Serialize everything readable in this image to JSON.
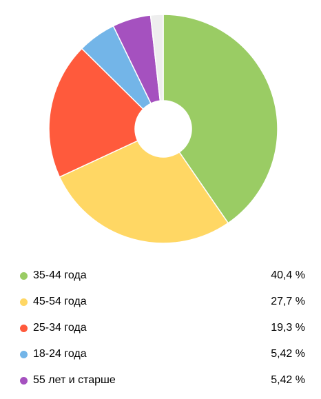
{
  "chart_data": {
    "type": "pie",
    "categories": [
      "35-44 года",
      "45-54 года",
      "25-34 года",
      "18-24 года",
      "55 лет и старше",
      ""
    ],
    "values": [
      40.4,
      27.7,
      19.3,
      5.42,
      5.42,
      1.78
    ],
    "colors": [
      "#9acc64",
      "#ffd764",
      "#ff5a3c",
      "#73b5e8",
      "#a551bf",
      "#eeeeee"
    ],
    "donut": true,
    "legend": "bottom"
  },
  "legend": [
    {
      "label": "35-44 года",
      "value": "40,4 %",
      "color": "#9acc64"
    },
    {
      "label": "45-54 года",
      "value": "27,7 %",
      "color": "#ffd764"
    },
    {
      "label": "25-34 года",
      "value": "19,3 %",
      "color": "#ff5a3c"
    },
    {
      "label": "18-24 года",
      "value": "5,42 %",
      "color": "#73b5e8"
    },
    {
      "label": "55 лет и старше",
      "value": "5,42 %",
      "color": "#a551bf"
    }
  ]
}
